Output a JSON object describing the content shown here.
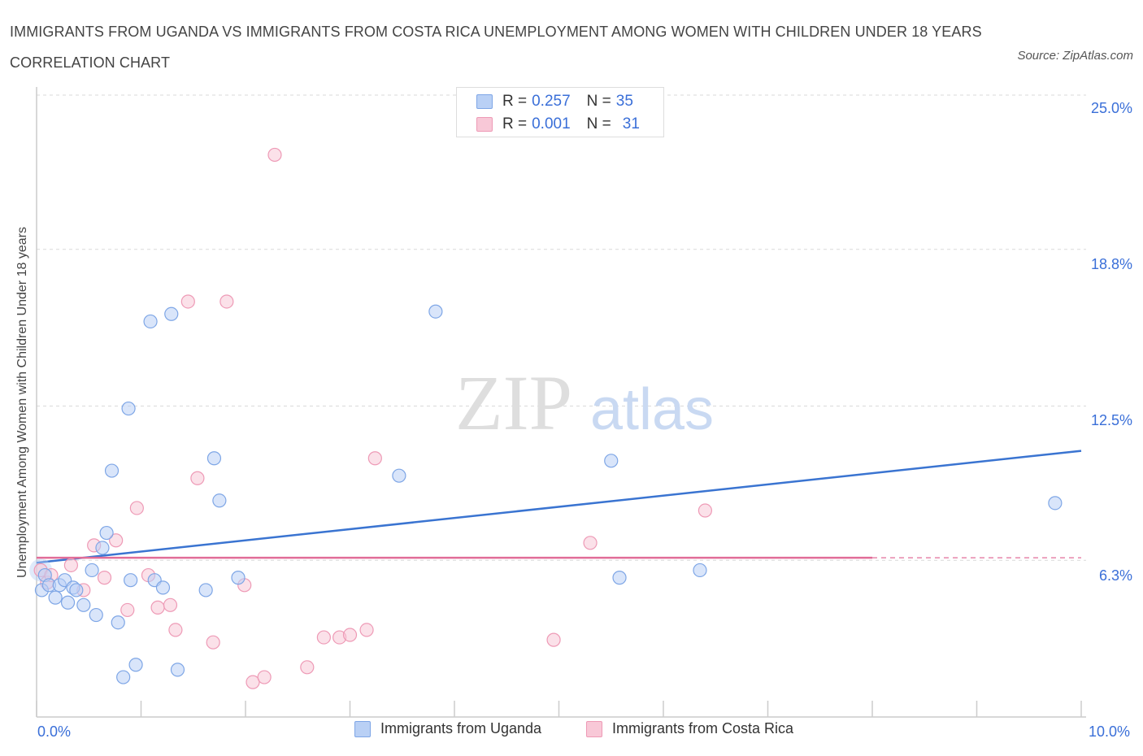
{
  "title": "IMMIGRANTS FROM UGANDA VS IMMIGRANTS FROM COSTA RICA UNEMPLOYMENT AMONG WOMEN WITH CHILDREN UNDER 18 YEARS CORRELATION CHART",
  "source": "Source: ZipAtlas.com",
  "watermark": {
    "zip": "ZIP",
    "atlas": "atlas"
  },
  "stats": [
    {
      "r_label": "R =",
      "r_value": "0.257",
      "n_label": "N =",
      "n_value": "35",
      "color": "#a7c4f0"
    },
    {
      "r_label": "R =",
      "r_value": "0.001",
      "n_label": "N =",
      "n_value": "31",
      "color": "#f4b3c8"
    }
  ],
  "colors": {
    "uganda_fill": "#b9d0f5",
    "uganda_stroke": "#7ea6e6",
    "uganda_line": "#3a74d1",
    "costarica_fill": "#f8c8d7",
    "costarica_stroke": "#ee9ab6",
    "costarica_line": "#e16d98",
    "grid": "#d9d9d9",
    "tick_text": "#3a6fd8"
  },
  "chart_data": {
    "type": "scatter",
    "title": "IMMIGRANTS FROM UGANDA VS IMMIGRANTS FROM COSTA RICA UNEMPLOYMENT AMONG WOMEN WITH CHILDREN UNDER 18 YEARS CORRELATION CHART",
    "xlabel": "",
    "ylabel": "Unemployment Among Women with Children Under 18 years",
    "xlim": [
      0,
      10
    ],
    "ylim": [
      0,
      25
    ],
    "x_tick_labels": [
      "0.0%",
      "10.0%"
    ],
    "y_ticks": [
      {
        "value": 6.3,
        "label": "6.3%"
      },
      {
        "value": 12.5,
        "label": "12.5%"
      },
      {
        "value": 18.8,
        "label": "18.8%"
      },
      {
        "value": 25.0,
        "label": "25.0%"
      }
    ],
    "grid": true,
    "legend_position": "bottom-center",
    "series": [
      {
        "name": "Immigrants from Uganda",
        "color": "#7ea6e6",
        "points": [
          [
            0.05,
            5.1
          ],
          [
            0.08,
            5.7
          ],
          [
            0.12,
            5.3
          ],
          [
            0.18,
            4.8
          ],
          [
            0.22,
            5.3
          ],
          [
            0.27,
            5.5
          ],
          [
            0.3,
            4.6
          ],
          [
            0.35,
            5.2
          ],
          [
            0.38,
            5.1
          ],
          [
            0.45,
            4.5
          ],
          [
            0.53,
            5.9
          ],
          [
            0.57,
            4.1
          ],
          [
            0.63,
            6.8
          ],
          [
            0.67,
            7.4
          ],
          [
            0.72,
            9.9
          ],
          [
            0.78,
            3.8
          ],
          [
            0.83,
            1.6
          ],
          [
            0.88,
            12.4
          ],
          [
            0.9,
            5.5
          ],
          [
            0.95,
            2.1
          ],
          [
            1.09,
            15.9
          ],
          [
            1.13,
            5.5
          ],
          [
            1.21,
            5.2
          ],
          [
            1.29,
            16.2
          ],
          [
            1.35,
            1.9
          ],
          [
            1.62,
            5.1
          ],
          [
            1.7,
            10.4
          ],
          [
            1.75,
            8.7
          ],
          [
            1.93,
            5.6
          ],
          [
            3.47,
            9.7
          ],
          [
            3.82,
            16.3
          ],
          [
            5.5,
            10.3
          ],
          [
            5.58,
            5.6
          ],
          [
            6.35,
            5.9
          ],
          [
            9.75,
            8.6
          ]
        ],
        "trend": {
          "x": [
            0.0,
            10.0
          ],
          "y": [
            6.2,
            10.7
          ]
        }
      },
      {
        "name": "Immigrants from Costa Rica",
        "color": "#ee9ab6",
        "points": [
          [
            0.04,
            5.9
          ],
          [
            0.1,
            5.4
          ],
          [
            0.14,
            5.7
          ],
          [
            0.33,
            6.1
          ],
          [
            0.45,
            5.1
          ],
          [
            0.55,
            6.9
          ],
          [
            0.65,
            5.6
          ],
          [
            0.76,
            7.1
          ],
          [
            0.87,
            4.3
          ],
          [
            0.96,
            8.4
          ],
          [
            1.07,
            5.7
          ],
          [
            1.16,
            4.4
          ],
          [
            1.28,
            4.5
          ],
          [
            1.33,
            3.5
          ],
          [
            1.45,
            16.7
          ],
          [
            1.54,
            9.6
          ],
          [
            1.69,
            3.0
          ],
          [
            1.82,
            16.7
          ],
          [
            1.99,
            5.3
          ],
          [
            2.07,
            1.4
          ],
          [
            2.18,
            1.6
          ],
          [
            2.28,
            22.6
          ],
          [
            2.59,
            2.0
          ],
          [
            2.75,
            3.2
          ],
          [
            2.9,
            3.2
          ],
          [
            3.0,
            3.3
          ],
          [
            3.16,
            3.5
          ],
          [
            3.24,
            10.4
          ],
          [
            4.95,
            3.1
          ],
          [
            5.3,
            7.0
          ],
          [
            6.4,
            8.3
          ]
        ],
        "trend": {
          "x": [
            0.0,
            8.0
          ],
          "y": [
            6.4,
            6.4
          ],
          "dashed_extension_to": 10.0
        }
      }
    ]
  }
}
